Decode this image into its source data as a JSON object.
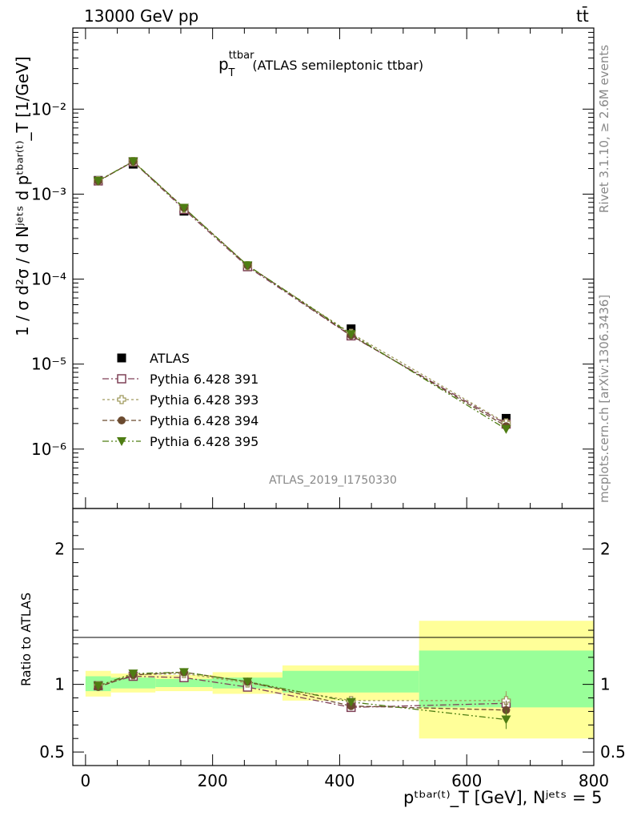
{
  "header": {
    "energy_label": "13000 GeV pp",
    "process_label": "tt̄",
    "plot_title_main": "p",
    "plot_title_sup": "ttbar",
    "plot_title_sub": "T",
    "plot_title_rest": "(ATLAS semileptonic ttbar)",
    "analysis_id": "ATLAS_2019_I1750330"
  },
  "side_labels": {
    "rivet": "Rivet 3.1.10, ≥ 2.6M events",
    "mcplots": "mcplots.cern.ch [arXiv:1306.3436]"
  },
  "axes": {
    "ylabel_main": "1 / σ d²σ / d Nʲᵉᵗˢ d pᵗᵇᵃʳ⁽ᵗ⁾_T [1/GeV]",
    "ylabel_ratio": "Ratio to ATLAS",
    "xlabel": "pᵗᵇᵃʳ⁽ᵗ⁾_T [GeV], Nʲᵉᵗˢ = 5"
  },
  "chart_data": {
    "type": "line",
    "title": "p_T^ttbar (ATLAS semileptonic ttbar)",
    "xlim": [
      -20,
      800
    ],
    "main_ylim": [
      2e-07,
      0.09
    ],
    "main_yscale": "log",
    "main_yticks": [
      {
        "value": 1e-06,
        "label": "10⁻⁶"
      },
      {
        "value": 1e-05,
        "label": "10⁻⁵"
      },
      {
        "value": 0.0001,
        "label": "10⁻⁴"
      },
      {
        "value": 0.001,
        "label": "10⁻³"
      },
      {
        "value": 0.01,
        "label": "10⁻²"
      }
    ],
    "ratio_ylim": [
      0.4,
      2.3
    ],
    "ratio_yticks": [
      {
        "value": 0.5,
        "label": "0.5"
      },
      {
        "value": 1,
        "label": "1"
      },
      {
        "value": 2,
        "label": "2"
      }
    ],
    "xticks": [
      {
        "value": 0,
        "label": "0"
      },
      {
        "value": 200,
        "label": "200"
      },
      {
        "value": 400,
        "label": "400"
      },
      {
        "value": 600,
        "label": "600"
      },
      {
        "value": 800,
        "label": "800"
      }
    ],
    "bins": [
      [
        0,
        40
      ],
      [
        40,
        110
      ],
      [
        110,
        200
      ],
      [
        200,
        310
      ],
      [
        310,
        525
      ],
      [
        525,
        800
      ]
    ],
    "x": [
      20,
      75,
      155,
      255,
      418,
      662
    ],
    "data": {
      "name": "ATLAS",
      "values": [
        0.00145,
        0.00225,
        0.00063,
        0.000142,
        2.6e-05,
        2.3e-06
      ],
      "band_stat": [
        [
          0.95,
          1.06
        ],
        [
          0.97,
          1.05
        ],
        [
          0.98,
          1.04
        ],
        [
          0.97,
          1.05
        ],
        [
          0.94,
          1.1
        ],
        [
          0.83,
          1.25
        ]
      ],
      "band_total": [
        [
          0.91,
          1.1
        ],
        [
          0.94,
          1.08
        ],
        [
          0.95,
          1.07
        ],
        [
          0.93,
          1.09
        ],
        [
          0.88,
          1.14
        ],
        [
          0.6,
          1.47
        ]
      ]
    },
    "series": [
      {
        "name": "Pythia 6.428 391",
        "color": "#7f4157",
        "dash": "8,3,2,3",
        "marker": "open-square",
        "values": [
          0.00143,
          0.0024,
          0.00066,
          0.00014,
          2.15e-05,
          1.97e-06
        ],
        "ratio": [
          0.99,
          1.06,
          1.05,
          0.98,
          0.83,
          0.86
        ]
      },
      {
        "name": "Pythia 6.428 393",
        "color": "#a09b5f",
        "dash": "3,3",
        "marker": "open-cross",
        "values": [
          0.00144,
          0.00242,
          0.00068,
          0.000144,
          2.3e-05,
          2.03e-06
        ],
        "ratio": [
          0.99,
          1.07,
          1.08,
          1.01,
          0.88,
          0.88
        ]
      },
      {
        "name": "Pythia 6.428 394",
        "color": "#6b4a2f",
        "dash": "6,3",
        "marker": "circle",
        "values": [
          0.00142,
          0.00242,
          0.00069,
          0.000145,
          2.18e-05,
          1.86e-06
        ],
        "ratio": [
          0.98,
          1.07,
          1.09,
          1.02,
          0.84,
          0.81
        ]
      },
      {
        "name": "Pythia 6.428 395",
        "color": "#4e7d13",
        "dash": "8,3,2,3,2,3",
        "marker": "down-triangle",
        "values": [
          0.00143,
          0.00243,
          0.00069,
          0.000145,
          2.25e-05,
          1.72e-06
        ],
        "ratio": [
          0.99,
          1.08,
          1.09,
          1.02,
          0.87,
          0.74
        ]
      }
    ],
    "ratio_errors": [
      0.01,
      0.01,
      0.012,
      0.015,
      0.03,
      0.07
    ]
  }
}
